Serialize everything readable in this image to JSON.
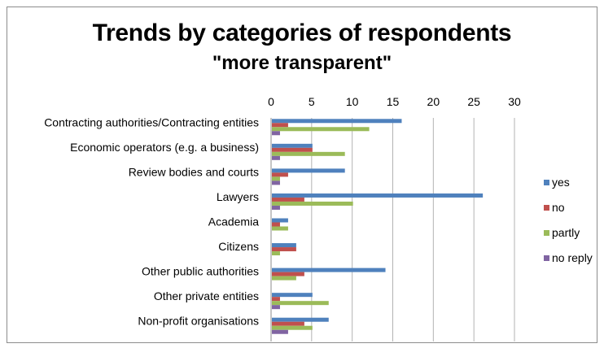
{
  "chart_data": {
    "type": "bar",
    "orientation": "horizontal",
    "title": "Trends by categories of respondents",
    "subtitle": "\"more transparent\"",
    "xlabel": "",
    "ylabel": "",
    "xlim": [
      0,
      30
    ],
    "ticks": [
      0,
      5,
      10,
      15,
      20,
      25,
      30
    ],
    "tick_labels": [
      "0",
      "5",
      "10",
      "15",
      "20",
      "25",
      "30"
    ],
    "grid": true,
    "legend": "right",
    "categories": [
      "Contracting authorities/Contracting entities",
      "Economic operators (e.g. a business)",
      "Review bodies and courts",
      "Lawyers",
      "Academia",
      "Citizens",
      "Other public authorities",
      "Other private entities",
      "Non-profit organisations"
    ],
    "series": [
      {
        "name": "yes",
        "color": "#4f81bd",
        "values": [
          16,
          5,
          9,
          26,
          2,
          3,
          14,
          5,
          7
        ]
      },
      {
        "name": "no",
        "color": "#c0504d",
        "values": [
          2,
          5,
          2,
          4,
          1,
          3,
          4,
          1,
          4
        ]
      },
      {
        "name": "partly",
        "color": "#9bbb59",
        "values": [
          12,
          9,
          1,
          10,
          2,
          1,
          3,
          7,
          5
        ]
      },
      {
        "name": "no reply",
        "color": "#8064a2",
        "values": [
          1,
          1,
          1,
          1,
          0,
          0,
          0,
          1,
          2
        ]
      }
    ]
  }
}
